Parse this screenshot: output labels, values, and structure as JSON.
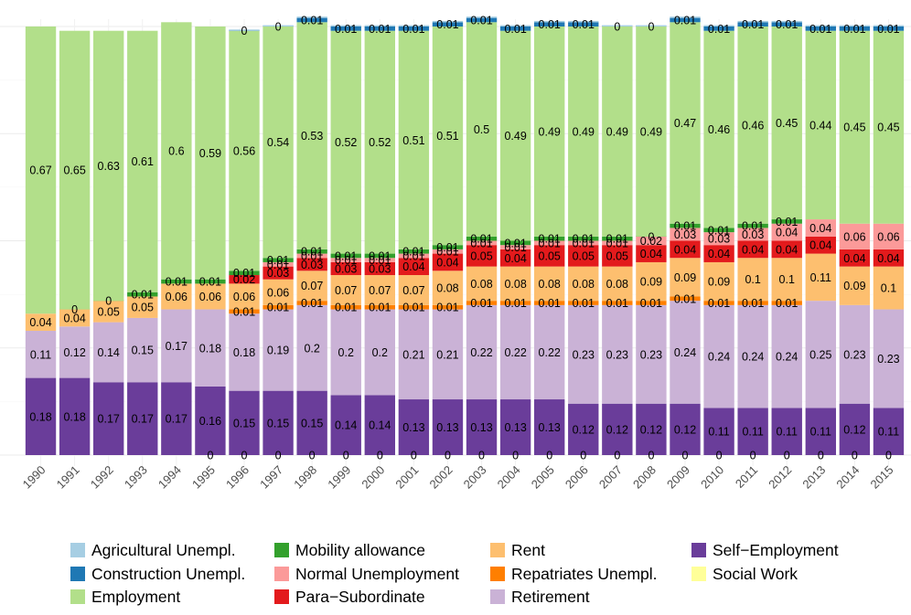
{
  "chart_data": {
    "type": "bar",
    "stacked": true,
    "grid": true,
    "legend_position": "bottom",
    "ylim": [
      0,
      1
    ],
    "categories": [
      "1990",
      "1991",
      "1992",
      "1993",
      "1994",
      "1995",
      "1996",
      "1997",
      "1998",
      "1999",
      "2000",
      "2001",
      "2002",
      "2003",
      "2004",
      "2005",
      "2006",
      "2007",
      "2008",
      "2009",
      "2010",
      "2011",
      "2012",
      "2013",
      "2014",
      "2015"
    ],
    "series": [
      {
        "name": "Agricultural Unempl.",
        "color": "#a6cee3",
        "values": [
          null,
          null,
          null,
          null,
          null,
          null,
          0.003,
          0.003,
          0.003,
          0.003,
          0.003,
          0.003,
          0.003,
          0.003,
          0.003,
          0.003,
          0.003,
          0.003,
          0.003,
          0.003,
          0.003,
          0.003,
          0.003,
          0.003,
          0.003,
          0.003
        ],
        "labels": [
          "",
          "",
          "",
          "",
          "",
          "",
          "",
          "",
          "",
          "",
          "",
          "",
          "",
          "",
          "",
          "",
          "",
          "",
          "",
          "",
          "",
          "",
          "",
          "",
          "",
          ""
        ]
      },
      {
        "name": "Construction Unempl.",
        "color": "#1f78b4",
        "values": [
          null,
          null,
          null,
          null,
          null,
          null,
          0.0,
          0.0,
          0.01,
          0.01,
          0.01,
          0.01,
          0.01,
          0.01,
          0.01,
          0.01,
          0.01,
          0.0,
          0.0,
          0.01,
          0.01,
          0.01,
          0.01,
          0.01,
          0.01,
          0.01
        ],
        "labels": [
          "",
          "",
          "",
          "",
          "",
          "",
          "0",
          "0",
          "0.01",
          "0.01",
          "0.01",
          "0.01",
          "0.01",
          "0.01",
          "0.01",
          "0.01",
          "0.01",
          "0",
          "0",
          "0.01",
          "0.01",
          "0.01",
          "0.01",
          "0.01",
          "0.01",
          "0.01"
        ]
      },
      {
        "name": "Employment",
        "color": "#b2df8a",
        "values": [
          0.67,
          0.65,
          0.63,
          0.61,
          0.6,
          0.59,
          0.56,
          0.54,
          0.53,
          0.52,
          0.52,
          0.51,
          0.51,
          0.5,
          0.49,
          0.49,
          0.49,
          0.49,
          0.49,
          0.47,
          0.46,
          0.46,
          0.45,
          0.44,
          0.45,
          0.45
        ],
        "labels": [
          "0.67",
          "0.65",
          "0.63",
          "0.61",
          "0.6",
          "0.59",
          "0.56",
          "0.54",
          "0.53",
          "0.52",
          "0.52",
          "0.51",
          "0.51",
          "0.5",
          "0.49",
          "0.49",
          "0.49",
          "0.49",
          "0.49",
          "0.47",
          "0.46",
          "0.46",
          "0.45",
          "0.44",
          "0.45",
          "0.45"
        ]
      },
      {
        "name": "Mobility allowance",
        "color": "#33a02c",
        "values": [
          null,
          0.0,
          0.0,
          0.01,
          0.01,
          0.01,
          0.01,
          0.01,
          0.01,
          0.01,
          0.01,
          0.01,
          0.01,
          0.01,
          0.01,
          0.01,
          0.01,
          0.01,
          0.0,
          0.01,
          0.01,
          0.01,
          0.01,
          null,
          null,
          null
        ],
        "labels": [
          "",
          "0",
          "0",
          "0.01",
          "0.01",
          "0.01",
          "0.01",
          "0.01",
          "0.01",
          "0.01",
          "0.01",
          "0.01",
          "0.01",
          "0.01",
          "0.01",
          "0.01",
          "0.01",
          "0.01",
          "0",
          "0.01",
          "0.01",
          "0.01",
          "0.01",
          "",
          "",
          ""
        ]
      },
      {
        "name": "Normal Unemployment",
        "color": "#fb9a99",
        "values": [
          null,
          null,
          null,
          null,
          null,
          null,
          0.0,
          0.01,
          0.01,
          0.01,
          0.01,
          0.01,
          0.01,
          0.01,
          0.01,
          0.01,
          0.01,
          0.01,
          0.02,
          0.03,
          0.03,
          0.03,
          0.04,
          0.04,
          0.06,
          0.06
        ],
        "labels": [
          "",
          "",
          "",
          "",
          "",
          "",
          "",
          "0.01",
          "0.01",
          "0.01",
          "0.01",
          "0.01",
          "0.01",
          "0.01",
          "0.01",
          "0.01",
          "0.01",
          "0.01",
          "0.02",
          "0.03",
          "0.03",
          "0.03",
          "0.04",
          "0.04",
          "0.06",
          "0.06"
        ]
      },
      {
        "name": "Para−Subordinate",
        "color": "#e31a1c",
        "values": [
          null,
          null,
          null,
          null,
          null,
          null,
          0.02,
          0.03,
          0.03,
          0.03,
          0.03,
          0.04,
          0.04,
          0.05,
          0.04,
          0.05,
          0.05,
          0.05,
          0.04,
          0.04,
          0.04,
          0.04,
          0.04,
          0.04,
          0.04,
          0.04
        ],
        "labels": [
          "",
          "",
          "",
          "",
          "",
          "",
          "0.02",
          "0.03",
          "0.03",
          "0.03",
          "0.03",
          "0.04",
          "0.04",
          "0.05",
          "0.04",
          "0.05",
          "0.05",
          "0.05",
          "0.04",
          "0.04",
          "0.04",
          "0.04",
          "0.04",
          "0.04",
          "0.04",
          "0.04"
        ]
      },
      {
        "name": "Rent",
        "color": "#fdbf6f",
        "values": [
          0.04,
          0.04,
          0.05,
          0.05,
          0.06,
          0.06,
          0.06,
          0.06,
          0.07,
          0.07,
          0.07,
          0.07,
          0.08,
          0.08,
          0.08,
          0.08,
          0.08,
          0.08,
          0.09,
          0.09,
          0.09,
          0.1,
          0.1,
          0.11,
          0.09,
          0.1
        ],
        "labels": [
          "0.04",
          "0.04",
          "0.05",
          "0.05",
          "0.06",
          "0.06",
          "0.06",
          "0.06",
          "0.07",
          "0.07",
          "0.07",
          "0.07",
          "0.08",
          "0.08",
          "0.08",
          "0.08",
          "0.08",
          "0.08",
          "0.09",
          "0.09",
          "0.09",
          "0.1",
          "0.1",
          "0.11",
          "0.09",
          "0.1"
        ]
      },
      {
        "name": "Repatriates Unempl.",
        "color": "#ff7f00",
        "values": [
          null,
          null,
          null,
          null,
          null,
          null,
          0.01,
          0.01,
          0.01,
          0.01,
          0.01,
          0.01,
          0.01,
          0.01,
          0.01,
          0.01,
          0.01,
          0.01,
          0.01,
          0.01,
          0.01,
          0.01,
          0.01,
          null,
          null,
          null
        ],
        "labels": [
          "",
          "",
          "",
          "",
          "",
          "",
          "0.01",
          "0.01",
          "0.01",
          "0.01",
          "0.01",
          "0.01",
          "0.01",
          "0.01",
          "0.01",
          "0.01",
          "0.01",
          "0.01",
          "0.01",
          "0.01",
          "0.01",
          "0.01",
          "0.01",
          "",
          "",
          ""
        ]
      },
      {
        "name": "Retirement",
        "color": "#cab2d6",
        "values": [
          0.11,
          0.12,
          0.14,
          0.15,
          0.17,
          0.18,
          0.18,
          0.19,
          0.2,
          0.2,
          0.2,
          0.21,
          0.21,
          0.22,
          0.22,
          0.22,
          0.23,
          0.23,
          0.23,
          0.24,
          0.24,
          0.24,
          0.24,
          0.25,
          0.23,
          0.23
        ],
        "labels": [
          "0.11",
          "0.12",
          "0.14",
          "0.15",
          "0.17",
          "0.18",
          "0.18",
          "0.19",
          "0.2",
          "0.2",
          "0.2",
          "0.21",
          "0.21",
          "0.22",
          "0.22",
          "0.22",
          "0.23",
          "0.23",
          "0.23",
          "0.24",
          "0.24",
          "0.24",
          "0.24",
          "0.25",
          "0.23",
          "0.23"
        ]
      },
      {
        "name": "Self−Employment",
        "color": "#6a3d9a",
        "values": [
          0.18,
          0.18,
          0.17,
          0.17,
          0.17,
          0.16,
          0.15,
          0.15,
          0.15,
          0.14,
          0.14,
          0.13,
          0.13,
          0.13,
          0.13,
          0.13,
          0.12,
          0.12,
          0.12,
          0.12,
          0.11,
          0.11,
          0.11,
          0.11,
          0.12,
          0.11
        ],
        "labels": [
          "0.18",
          "0.18",
          "0.17",
          "0.17",
          "0.17",
          "0.16",
          "0.15",
          "0.15",
          "0.15",
          "0.14",
          "0.14",
          "0.13",
          "0.13",
          "0.13",
          "0.13",
          "0.13",
          "0.12",
          "0.12",
          "0.12",
          "0.12",
          "0.11",
          "0.11",
          "0.11",
          "0.11",
          "0.12",
          "0.11"
        ]
      },
      {
        "name": "Social Work",
        "color": "#ffff99",
        "values": [
          null,
          null,
          null,
          null,
          null,
          0.0,
          0.0,
          0.0,
          0.0,
          0.0,
          0.0,
          0.0,
          0.0,
          0.0,
          0.0,
          0.0,
          0.0,
          0.0,
          0.0,
          0.0,
          0.0,
          0.0,
          0.0,
          0.0,
          0.0,
          0.0
        ],
        "labels": [
          "",
          "",
          "",
          "",
          "",
          "0",
          "0",
          "0",
          "0",
          "0",
          "0",
          "0",
          "0",
          "0",
          "0",
          "0",
          "0",
          "0",
          "0",
          "0",
          "0",
          "0",
          "0",
          "0",
          "0",
          "0"
        ]
      }
    ]
  }
}
